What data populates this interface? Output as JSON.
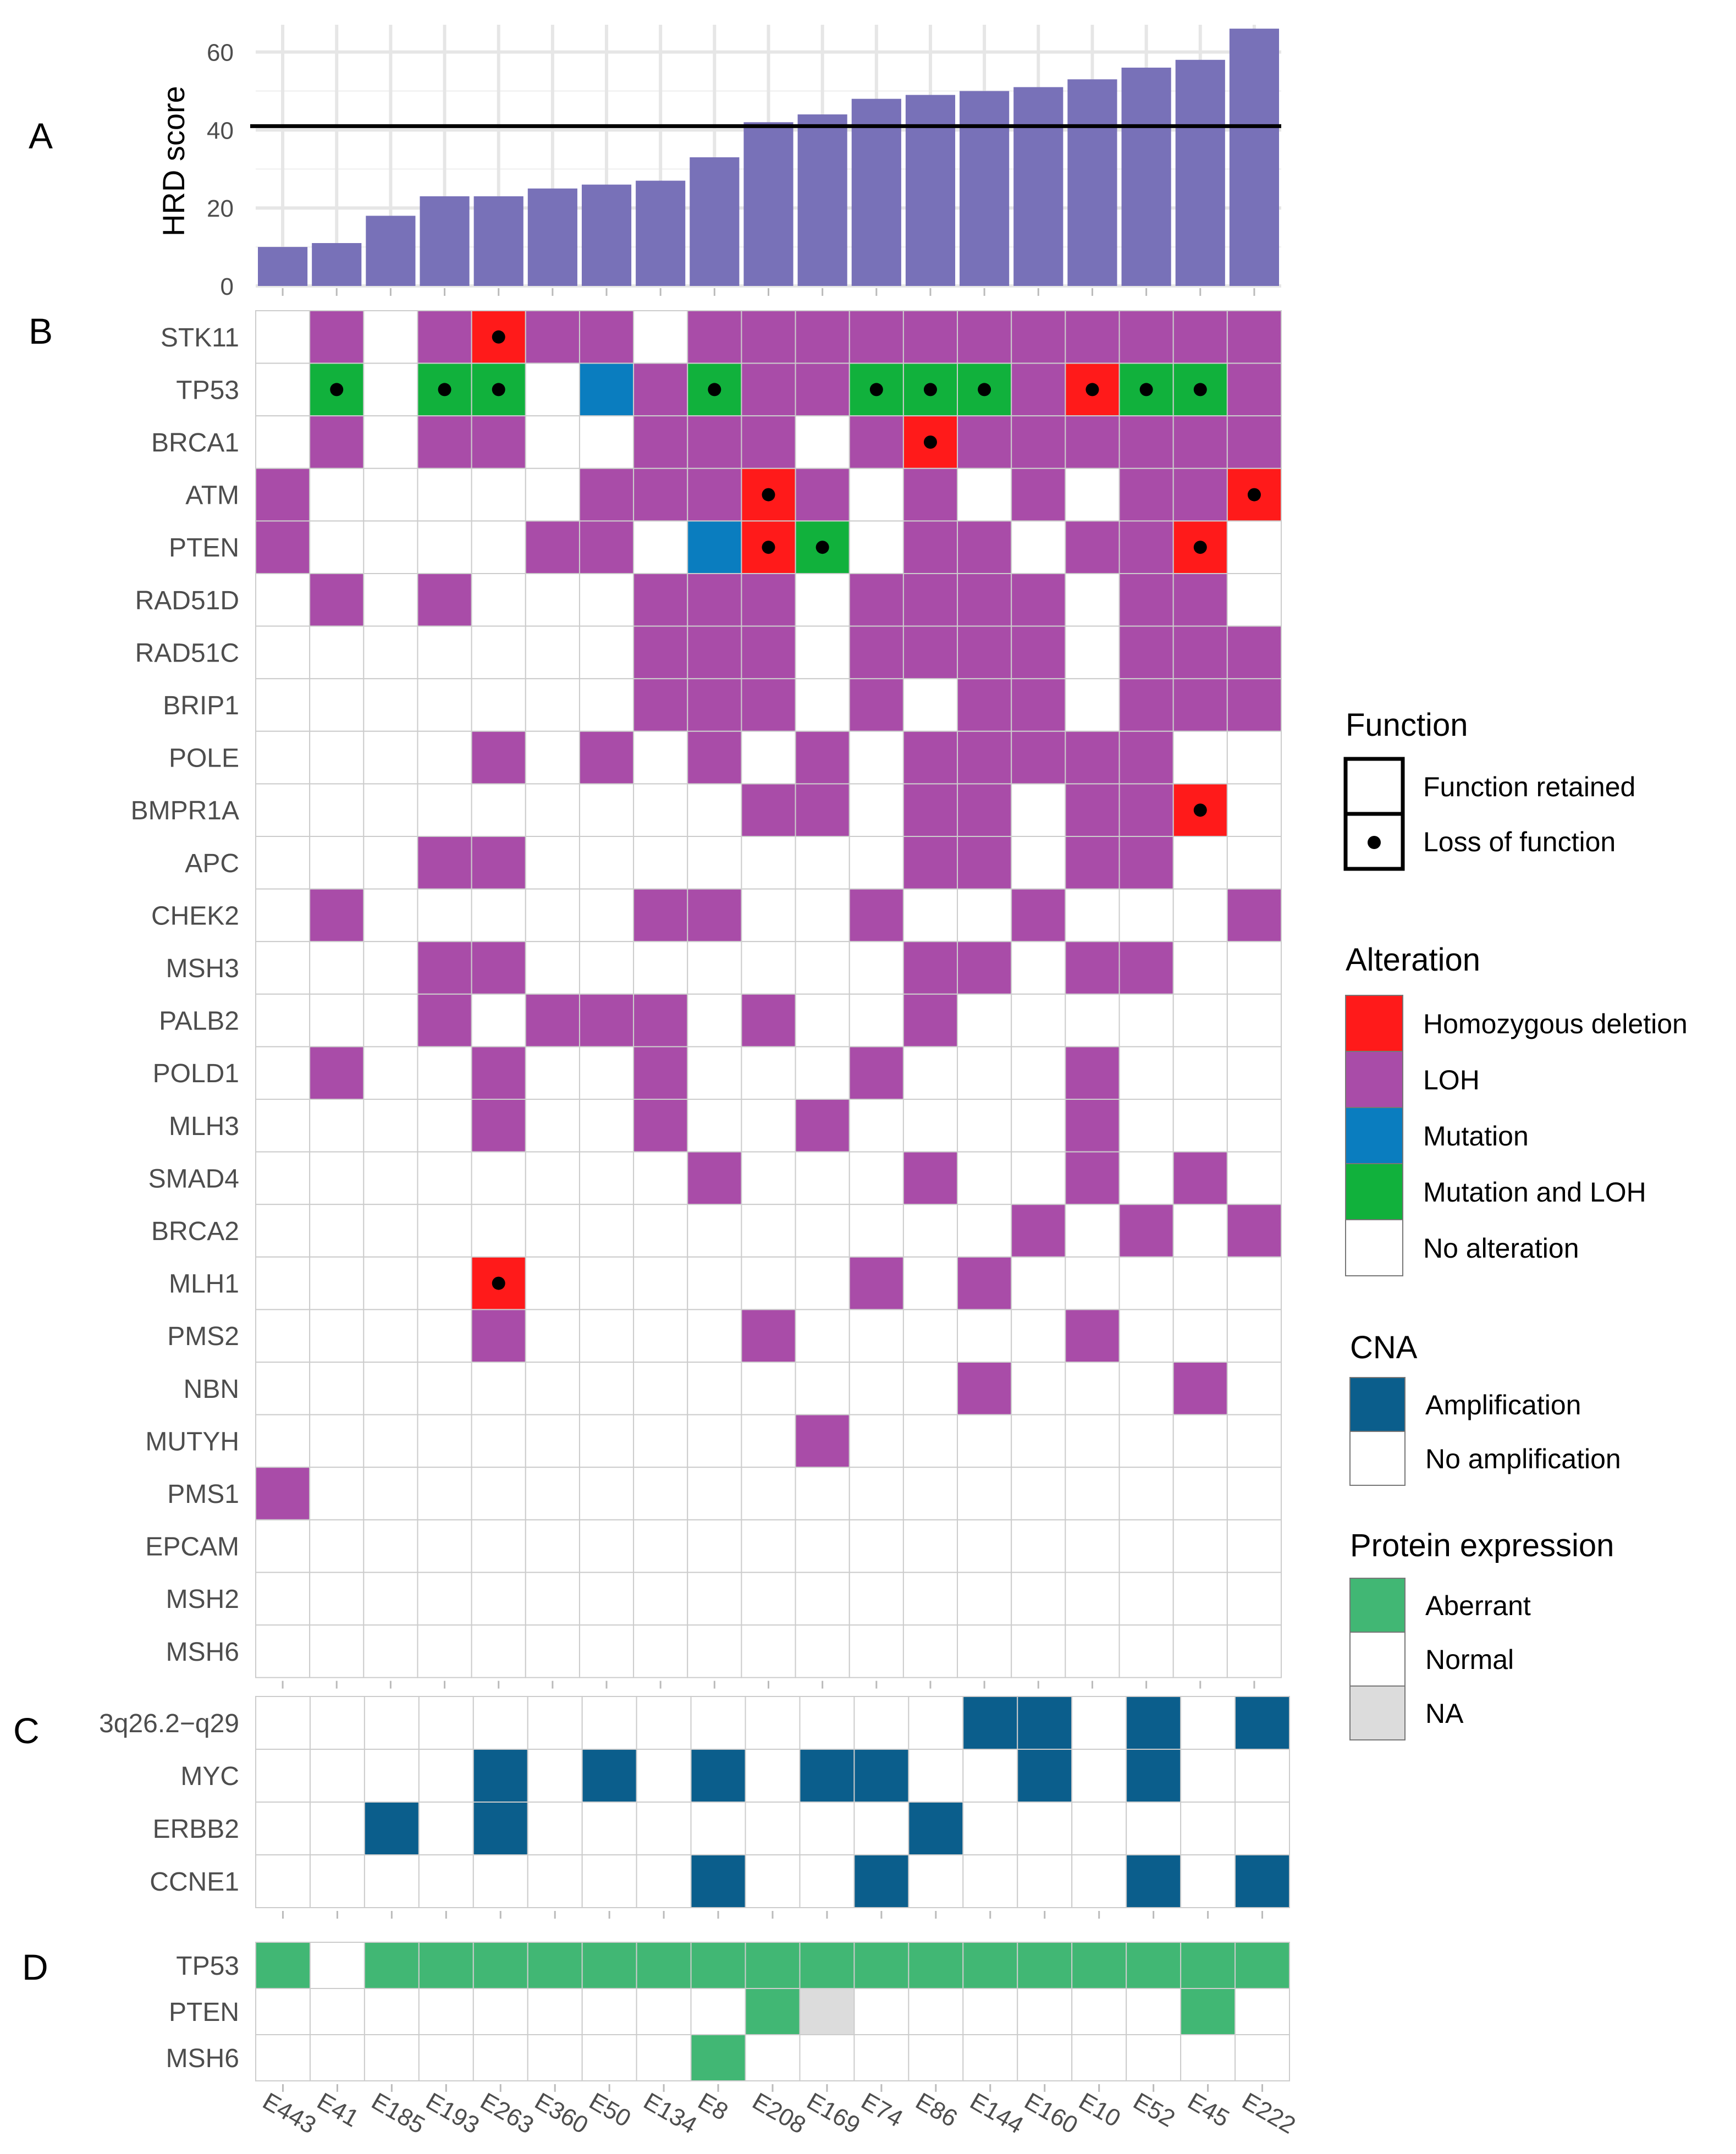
{
  "samples": [
    "E443",
    "E41",
    "E185",
    "E193",
    "E263",
    "E360",
    "E50",
    "E134",
    "E8",
    "E208",
    "E169",
    "E74",
    "E86",
    "E144",
    "E160",
    "E10",
    "E52",
    "E45",
    "E222"
  ],
  "colors": {
    "homdel": "#FF1A1A",
    "loh": "#A94CA8",
    "mutation": "#0A7DBF",
    "mutloh": "#11B13C",
    "none": "#FFFFFF",
    "amp": "#0B5E8C",
    "aberrant": "#41B774",
    "na": "#DCDCDC",
    "bar": "#7871B8"
  },
  "panels": {
    "A": "A",
    "B": "B",
    "C": "C",
    "D": "D"
  },
  "chart_data": [
    {
      "type": "bar",
      "panel": "A",
      "title": "",
      "xlabel": "",
      "ylabel": "HRD score",
      "ylim": [
        0,
        67
      ],
      "yticks": [
        "0",
        "20",
        "40",
        "60"
      ],
      "threshold": 41,
      "categories": [
        "E443",
        "E41",
        "E185",
        "E193",
        "E263",
        "E360",
        "E50",
        "E134",
        "E8",
        "E208",
        "E169",
        "E74",
        "E86",
        "E144",
        "E160",
        "E10",
        "E52",
        "E45",
        "E222"
      ],
      "values": [
        10,
        11,
        18,
        23,
        23,
        25,
        26,
        27,
        33,
        42,
        44,
        48,
        49,
        50,
        51,
        53,
        56,
        58,
        66
      ]
    },
    {
      "type": "heatmap",
      "panel": "B",
      "legend_key": "H=Homozygous deletion, L=LOH, M=Mutation, G=Mutation and LOH, .=No alteration; * suffix = Loss of function",
      "genes": [
        "STK11",
        "TP53",
        "BRCA1",
        "ATM",
        "PTEN",
        "RAD51D",
        "RAD51C",
        "BRIP1",
        "POLE",
        "BMPR1A",
        "APC",
        "CHEK2",
        "MSH3",
        "PALB2",
        "POLD1",
        "MLH3",
        "SMAD4",
        "BRCA2",
        "MLH1",
        "PMS2",
        "NBN",
        "MUTYH",
        "PMS1",
        "EPCAM",
        "MSH2",
        "MSH6"
      ],
      "rows": [
        [
          ".",
          "L",
          ".",
          "L",
          "H*",
          "L",
          "L",
          ".",
          "L",
          "L",
          "L",
          "L",
          "L",
          "L",
          "L",
          "L",
          "L",
          "L",
          "L"
        ],
        [
          ".",
          "G*",
          ".",
          "G*",
          "G*",
          ".",
          "M",
          "L",
          "G*",
          "L",
          "L",
          "G*",
          "G*",
          "G*",
          "L",
          "H*",
          "G*",
          "G*",
          "L"
        ],
        [
          ".",
          "L",
          ".",
          "L",
          "L",
          ".",
          ".",
          "L",
          "L",
          "L",
          ".",
          "L",
          "H*",
          "L",
          "L",
          "L",
          "L",
          "L",
          "L"
        ],
        [
          "L",
          ".",
          ".",
          ".",
          ".",
          ".",
          "L",
          "L",
          "L",
          "H*",
          "L",
          ".",
          "L",
          ".",
          "L",
          ".",
          "L",
          "L",
          "H*"
        ],
        [
          "L",
          ".",
          ".",
          ".",
          ".",
          "L",
          "L",
          ".",
          "M",
          "H*",
          "G*",
          ".",
          "L",
          "L",
          ".",
          "L",
          "L",
          "H*",
          "."
        ],
        [
          ".",
          "L",
          ".",
          "L",
          ".",
          ".",
          ".",
          "L",
          "L",
          "L",
          ".",
          "L",
          "L",
          "L",
          "L",
          ".",
          "L",
          "L",
          "."
        ],
        [
          ".",
          ".",
          ".",
          ".",
          ".",
          ".",
          ".",
          "L",
          "L",
          "L",
          ".",
          "L",
          "L",
          "L",
          "L",
          ".",
          "L",
          "L",
          "L"
        ],
        [
          ".",
          ".",
          ".",
          ".",
          ".",
          ".",
          ".",
          "L",
          "L",
          "L",
          ".",
          "L",
          ".",
          "L",
          "L",
          ".",
          "L",
          "L",
          "L"
        ],
        [
          ".",
          ".",
          ".",
          ".",
          "L",
          ".",
          "L",
          ".",
          "L",
          ".",
          "L",
          ".",
          "L",
          "L",
          "L",
          "L",
          "L",
          ".",
          "."
        ],
        [
          ".",
          ".",
          ".",
          ".",
          ".",
          ".",
          ".",
          ".",
          ".",
          "L",
          "L",
          ".",
          "L",
          "L",
          ".",
          "L",
          "L",
          "H*",
          "."
        ],
        [
          ".",
          ".",
          ".",
          "L",
          "L",
          ".",
          ".",
          ".",
          ".",
          ".",
          ".",
          ".",
          "L",
          "L",
          ".",
          "L",
          "L",
          ".",
          "."
        ],
        [
          ".",
          "L",
          ".",
          ".",
          ".",
          ".",
          ".",
          "L",
          "L",
          ".",
          ".",
          "L",
          ".",
          ".",
          "L",
          ".",
          ".",
          ".",
          "L"
        ],
        [
          ".",
          ".",
          ".",
          "L",
          "L",
          ".",
          ".",
          ".",
          ".",
          ".",
          ".",
          ".",
          "L",
          "L",
          ".",
          "L",
          "L",
          ".",
          "."
        ],
        [
          ".",
          ".",
          ".",
          "L",
          ".",
          "L",
          "L",
          "L",
          ".",
          "L",
          ".",
          ".",
          "L",
          ".",
          ".",
          ".",
          ".",
          ".",
          "."
        ],
        [
          ".",
          "L",
          ".",
          ".",
          "L",
          ".",
          ".",
          "L",
          ".",
          ".",
          ".",
          "L",
          ".",
          ".",
          ".",
          "L",
          ".",
          ".",
          "."
        ],
        [
          ".",
          ".",
          ".",
          ".",
          "L",
          ".",
          ".",
          "L",
          ".",
          ".",
          "L",
          ".",
          ".",
          ".",
          ".",
          "L",
          ".",
          ".",
          "."
        ],
        [
          ".",
          ".",
          ".",
          ".",
          ".",
          ".",
          ".",
          ".",
          "L",
          ".",
          ".",
          ".",
          "L",
          ".",
          ".",
          "L",
          ".",
          "L",
          "."
        ],
        [
          ".",
          ".",
          ".",
          ".",
          ".",
          ".",
          ".",
          ".",
          ".",
          ".",
          ".",
          ".",
          ".",
          ".",
          "L",
          ".",
          "L",
          ".",
          "L"
        ],
        [
          ".",
          ".",
          ".",
          ".",
          "H*",
          ".",
          ".",
          ".",
          ".",
          ".",
          ".",
          "L",
          ".",
          "L",
          ".",
          ".",
          ".",
          ".",
          "."
        ],
        [
          ".",
          ".",
          ".",
          ".",
          "L",
          ".",
          ".",
          ".",
          ".",
          "L",
          ".",
          ".",
          ".",
          ".",
          ".",
          "L",
          ".",
          ".",
          "."
        ],
        [
          ".",
          ".",
          ".",
          ".",
          ".",
          ".",
          ".",
          ".",
          ".",
          ".",
          ".",
          ".",
          ".",
          "L",
          ".",
          ".",
          ".",
          "L",
          "."
        ],
        [
          ".",
          ".",
          ".",
          ".",
          ".",
          ".",
          ".",
          ".",
          ".",
          ".",
          "L",
          ".",
          ".",
          ".",
          ".",
          ".",
          ".",
          ".",
          "."
        ],
        [
          "L",
          ".",
          ".",
          ".",
          ".",
          ".",
          ".",
          ".",
          ".",
          ".",
          ".",
          ".",
          ".",
          ".",
          ".",
          ".",
          ".",
          ".",
          "."
        ],
        [
          ".",
          ".",
          ".",
          ".",
          ".",
          ".",
          ".",
          ".",
          ".",
          ".",
          ".",
          ".",
          ".",
          ".",
          ".",
          ".",
          ".",
          ".",
          "."
        ],
        [
          ".",
          ".",
          ".",
          ".",
          ".",
          ".",
          ".",
          ".",
          ".",
          ".",
          ".",
          ".",
          ".",
          ".",
          ".",
          ".",
          ".",
          ".",
          "."
        ],
        [
          ".",
          ".",
          ".",
          ".",
          ".",
          ".",
          ".",
          ".",
          ".",
          ".",
          ".",
          ".",
          ".",
          ".",
          ".",
          ".",
          ".",
          ".",
          "."
        ]
      ]
    },
    {
      "type": "heatmap",
      "panel": "C",
      "legend_key": "A=Amplification, .=No amplification",
      "genes": [
        "3q26.2−q29",
        "MYC",
        "ERBB2",
        "CCNE1"
      ],
      "rows": [
        [
          ".",
          ".",
          ".",
          ".",
          ".",
          ".",
          ".",
          ".",
          ".",
          ".",
          ".",
          ".",
          ".",
          "A",
          "A",
          ".",
          "A",
          ".",
          "A"
        ],
        [
          ".",
          ".",
          ".",
          ".",
          "A",
          ".",
          "A",
          ".",
          "A",
          ".",
          "A",
          "A",
          ".",
          ".",
          "A",
          ".",
          "A",
          ".",
          "."
        ],
        [
          ".",
          ".",
          "A",
          ".",
          "A",
          ".",
          ".",
          ".",
          ".",
          ".",
          ".",
          ".",
          "A",
          ".",
          ".",
          ".",
          ".",
          ".",
          "."
        ],
        [
          ".",
          ".",
          ".",
          ".",
          ".",
          ".",
          ".",
          ".",
          "A",
          ".",
          ".",
          "A",
          ".",
          ".",
          ".",
          ".",
          "A",
          ".",
          "A"
        ]
      ]
    },
    {
      "type": "heatmap",
      "panel": "D",
      "legend_key": "X=Aberrant, .=Normal, N=NA",
      "genes": [
        "TP53",
        "PTEN",
        "MSH6"
      ],
      "rows": [
        [
          "X",
          ".",
          "X",
          "X",
          "X",
          "X",
          "X",
          "X",
          "X",
          "X",
          "X",
          "X",
          "X",
          "X",
          "X",
          "X",
          "X",
          "X",
          "X"
        ],
        [
          ".",
          ".",
          ".",
          ".",
          ".",
          ".",
          ".",
          ".",
          ".",
          "X",
          "N",
          ".",
          ".",
          ".",
          ".",
          ".",
          ".",
          "X",
          "."
        ],
        [
          ".",
          ".",
          ".",
          ".",
          ".",
          ".",
          ".",
          ".",
          "X",
          ".",
          ".",
          ".",
          ".",
          ".",
          ".",
          ".",
          ".",
          ".",
          "."
        ]
      ]
    }
  ],
  "legends": {
    "function": {
      "title": "Function",
      "items": [
        "Function retained",
        "Loss of function"
      ]
    },
    "alteration": {
      "title": "Alteration",
      "items": [
        "Homozygous deletion",
        "LOH",
        "Mutation",
        "Mutation and LOH",
        "No alteration"
      ]
    },
    "cna": {
      "title": "CNA",
      "items": [
        "Amplification",
        "No amplification"
      ]
    },
    "protein": {
      "title": "Protein expression",
      "items": [
        "Aberrant",
        "Normal",
        "NA"
      ]
    }
  }
}
